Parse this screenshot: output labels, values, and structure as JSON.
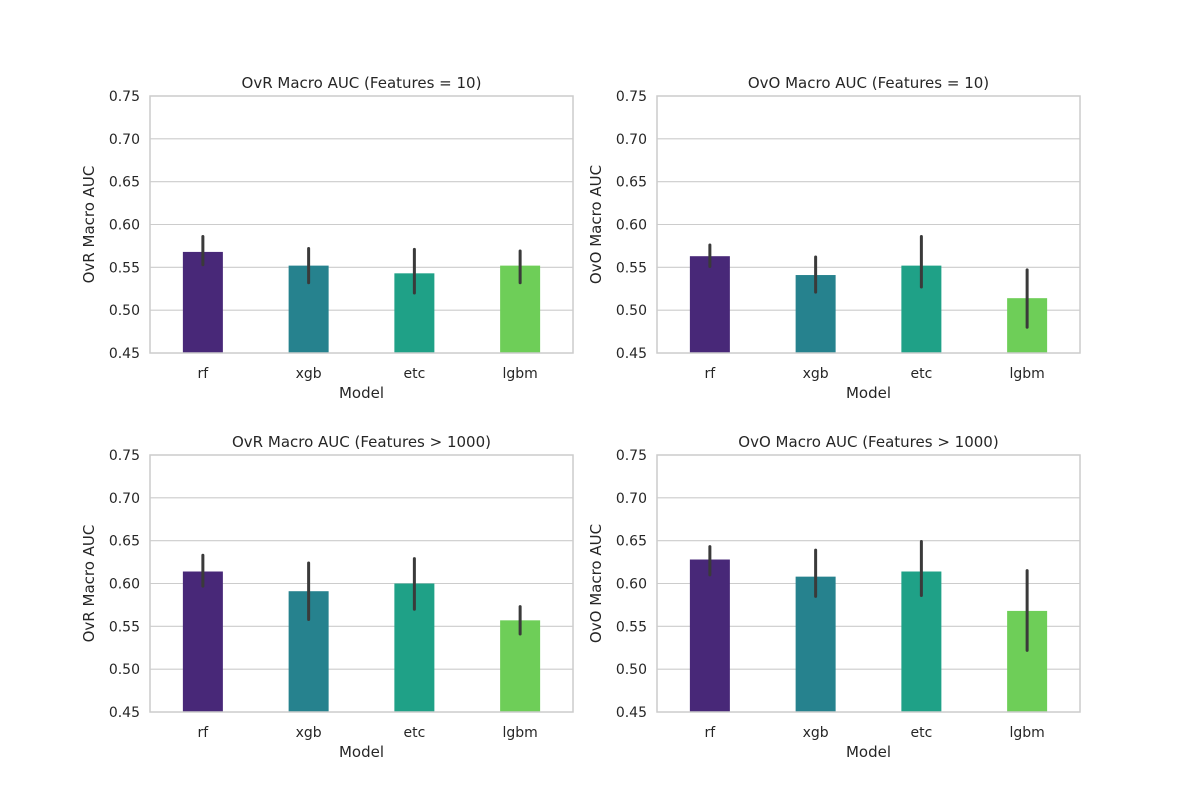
{
  "chart_data": [
    {
      "type": "bar",
      "title": "OvR Macro AUC (Features = 10)",
      "xlabel": "Model",
      "ylabel": "OvR Macro AUC",
      "categories": [
        "rf",
        "xgb",
        "etc",
        "lgbm"
      ],
      "values": [
        0.568,
        0.552,
        0.543,
        0.552
      ],
      "error_low": [
        0.553,
        0.532,
        0.52,
        0.532
      ],
      "error_high": [
        0.586,
        0.572,
        0.571,
        0.569
      ],
      "ylim": [
        0.45,
        0.75
      ],
      "yticks": [
        "0.45",
        "0.50",
        "0.55",
        "0.60",
        "0.65",
        "0.70",
        "0.75"
      ],
      "grid": "horizontal"
    },
    {
      "type": "bar",
      "title": "OvO Macro AUC (Features = 10)",
      "xlabel": "Model",
      "ylabel": "OvO Macro AUC",
      "categories": [
        "rf",
        "xgb",
        "etc",
        "lgbm"
      ],
      "values": [
        0.563,
        0.541,
        0.552,
        0.514
      ],
      "error_low": [
        0.551,
        0.521,
        0.527,
        0.48
      ],
      "error_high": [
        0.576,
        0.562,
        0.586,
        0.547
      ],
      "ylim": [
        0.45,
        0.75
      ],
      "yticks": [
        "0.45",
        "0.50",
        "0.55",
        "0.60",
        "0.65",
        "0.70",
        "0.75"
      ],
      "grid": "horizontal"
    },
    {
      "type": "bar",
      "title": "OvR Macro AUC (Features > 1000)",
      "xlabel": "Model",
      "ylabel": "OvR Macro AUC",
      "categories": [
        "rf",
        "xgb",
        "etc",
        "lgbm"
      ],
      "values": [
        0.614,
        0.591,
        0.6,
        0.557
      ],
      "error_low": [
        0.597,
        0.558,
        0.57,
        0.541
      ],
      "error_high": [
        0.633,
        0.624,
        0.629,
        0.573
      ],
      "ylim": [
        0.45,
        0.75
      ],
      "yticks": [
        "0.45",
        "0.50",
        "0.55",
        "0.60",
        "0.65",
        "0.70",
        "0.75"
      ],
      "grid": "horizontal"
    },
    {
      "type": "bar",
      "title": "OvO Macro AUC (Features > 1000)",
      "xlabel": "Model",
      "ylabel": "OvO Macro AUC",
      "categories": [
        "rf",
        "xgb",
        "etc",
        "lgbm"
      ],
      "values": [
        0.628,
        0.608,
        0.614,
        0.568
      ],
      "error_low": [
        0.61,
        0.585,
        0.586,
        0.522
      ],
      "error_high": [
        0.643,
        0.639,
        0.649,
        0.615
      ],
      "ylim": [
        0.45,
        0.75
      ],
      "yticks": [
        "0.45",
        "0.50",
        "0.55",
        "0.60",
        "0.65",
        "0.70",
        "0.75"
      ],
      "grid": "horizontal"
    }
  ],
  "colors": {
    "bars": [
      "#482878",
      "#26828e",
      "#1fa187",
      "#6ece58"
    ],
    "error_bar": "#3a3a3a",
    "grid": "#cccccc",
    "text": "#262626"
  }
}
